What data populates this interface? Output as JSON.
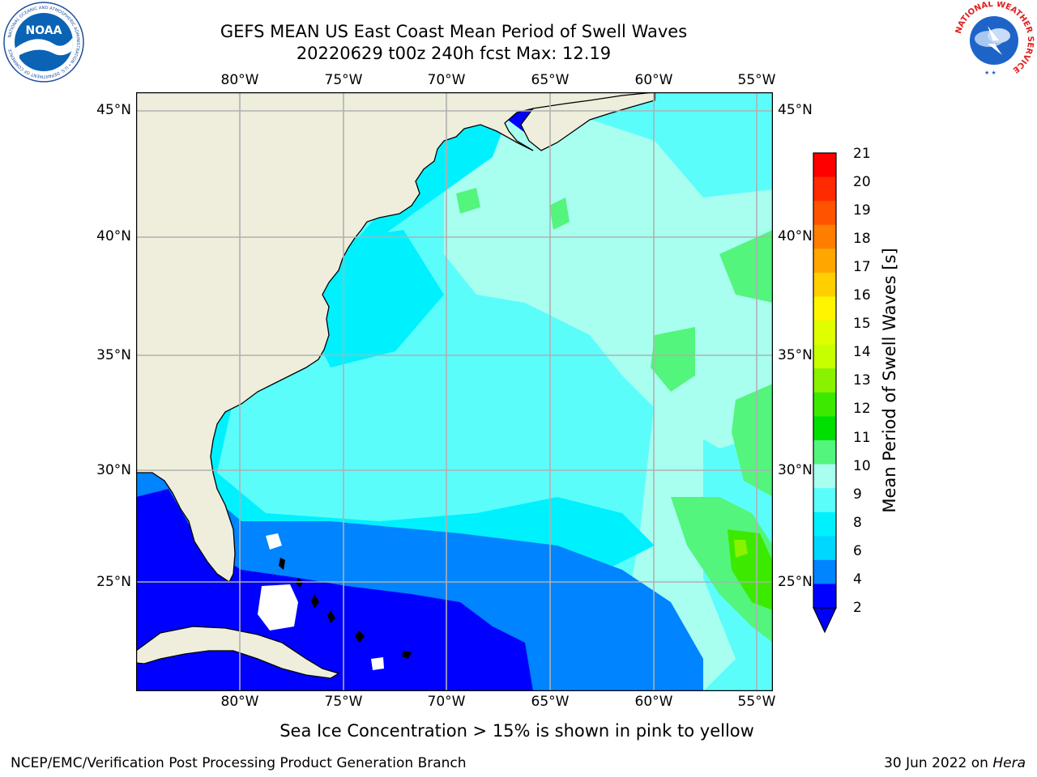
{
  "header": {
    "title_line1": "GEFS MEAN US East Coast Mean Period of Swell Waves",
    "title_line2": "20220629 t00z 240h fcst   Max: 12.19"
  },
  "logos": {
    "left": {
      "name": "noaa-logo",
      "text": "NOAA",
      "ring_text": "NATIONAL OCEANIC AND ATMOSPHERIC ADMINISTRATION • U.S. DEPARTMENT OF COMMERCE"
    },
    "right": {
      "name": "nws-logo",
      "ring_text": "NATIONAL WEATHER SERVICE"
    }
  },
  "map": {
    "lon_ticks": [
      "80°W",
      "75°W",
      "70°W",
      "65°W",
      "60°W",
      "55°W"
    ],
    "lat_ticks": [
      "45°N",
      "40°N",
      "35°N",
      "30°N",
      "25°N"
    ],
    "extent": {
      "lon_west": -85,
      "lon_east": -54.2,
      "lat_south": 20.5,
      "lat_north": 45.8
    },
    "land_color": "#efeedc",
    "gridline_color": "#b0b0b0"
  },
  "colorbar": {
    "title": "Mean Period of Swell Waves [s]",
    "levels": [
      "21",
      "20",
      "19",
      "18",
      "17",
      "16",
      "15",
      "14",
      "13",
      "12",
      "11",
      "10",
      "9",
      "8",
      "6",
      "4",
      "2"
    ],
    "colors": [
      "#ff0000",
      "#ff2a00",
      "#ff5300",
      "#ff7d00",
      "#ffa600",
      "#ffcf00",
      "#fff500",
      "#dfff00",
      "#c8ff00",
      "#89f200",
      "#3cea00",
      "#00e000",
      "#53f57d",
      "#a8fff0",
      "#5bfdfb",
      "#00f1fe",
      "#00d7ff",
      "#0084ff",
      "#0000ff"
    ],
    "extend": "min"
  },
  "note": "Sea Ice Concentration > 15% is shown in pink to yellow",
  "footer": {
    "left": "NCEP/EMC/Verification Post Processing Product Generation Branch",
    "date": "30 Jun 2022 on",
    "machine": "Hera"
  }
}
